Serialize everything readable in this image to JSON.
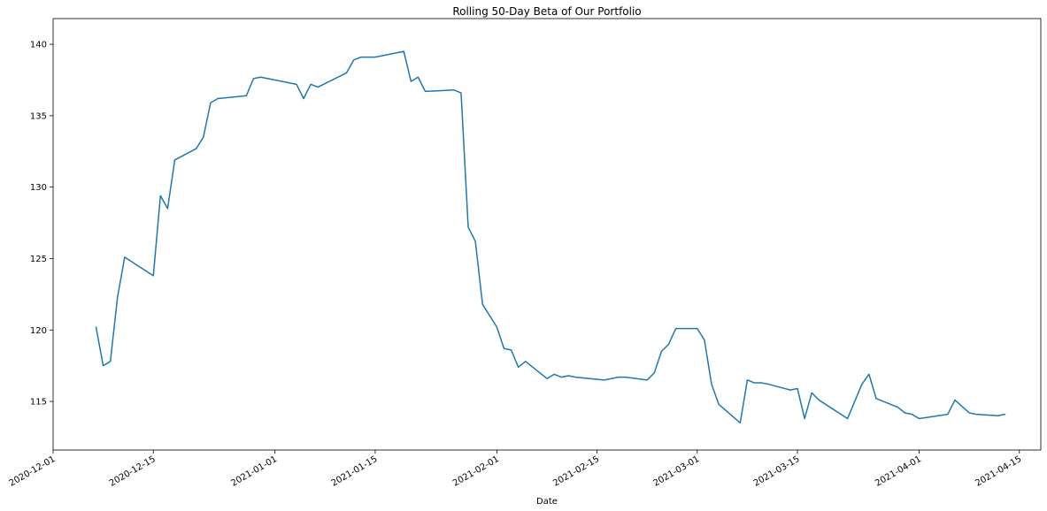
{
  "chart_data": {
    "type": "line",
    "title": "Rolling 50-Day Beta of Our Portfolio",
    "xlabel": "Date",
    "ylabel": "",
    "x_scale": "date",
    "xlim": [
      "2020-12-01",
      "2021-04-18"
    ],
    "ylim": [
      111.6,
      141.8
    ],
    "grid": false,
    "legend": "none",
    "x_ticks": [
      "2020-12-01",
      "2020-12-15",
      "2021-01-01",
      "2021-01-15",
      "2021-02-01",
      "2021-02-15",
      "2021-03-01",
      "2021-03-15",
      "2021-04-01",
      "2021-04-15"
    ],
    "y_ticks": [
      115,
      120,
      125,
      130,
      135,
      140
    ],
    "series": [
      {
        "color": "#1f77b4",
        "x": [
          "2020-12-07",
          "2020-12-08",
          "2020-12-09",
          "2020-12-10",
          "2020-12-11",
          "2020-12-15",
          "2020-12-16",
          "2020-12-17",
          "2020-12-18",
          "2020-12-21",
          "2020-12-22",
          "2020-12-23",
          "2020-12-24",
          "2020-12-28",
          "2020-12-29",
          "2020-12-30",
          "2020-12-31",
          "2021-01-04",
          "2021-01-05",
          "2021-01-06",
          "2021-01-07",
          "2021-01-11",
          "2021-01-12",
          "2021-01-13",
          "2021-01-14",
          "2021-01-15",
          "2021-01-19",
          "2021-01-20",
          "2021-01-21",
          "2021-01-22",
          "2021-01-26",
          "2021-01-27",
          "2021-01-28",
          "2021-01-29",
          "2021-01-30",
          "2021-02-01",
          "2021-02-02",
          "2021-02-03",
          "2021-02-04",
          "2021-02-05",
          "2021-02-08",
          "2021-02-09",
          "2021-02-10",
          "2021-02-11",
          "2021-02-12",
          "2021-02-16",
          "2021-02-17",
          "2021-02-18",
          "2021-02-19",
          "2021-02-22",
          "2021-02-23",
          "2021-02-24",
          "2021-02-25",
          "2021-02-26",
          "2021-03-01",
          "2021-03-02",
          "2021-03-03",
          "2021-03-04",
          "2021-03-07",
          "2021-03-08",
          "2021-03-09",
          "2021-03-10",
          "2021-03-11",
          "2021-03-14",
          "2021-03-15",
          "2021-03-16",
          "2021-03-17",
          "2021-03-18",
          "2021-03-22",
          "2021-03-24",
          "2021-03-25",
          "2021-03-26",
          "2021-03-29",
          "2021-03-30",
          "2021-03-31",
          "2021-04-01",
          "2021-04-05",
          "2021-04-06",
          "2021-04-08",
          "2021-04-09",
          "2021-04-12",
          "2021-04-13"
        ],
        "y": [
          120.2,
          117.5,
          117.8,
          122.3,
          125.1,
          123.8,
          129.4,
          128.5,
          131.9,
          132.7,
          133.5,
          135.9,
          136.2,
          136.4,
          137.6,
          137.7,
          137.6,
          137.2,
          136.2,
          137.2,
          137.0,
          138.0,
          138.9,
          139.1,
          139.1,
          139.1,
          139.5,
          137.4,
          137.7,
          136.7,
          136.8,
          136.6,
          127.2,
          126.2,
          121.8,
          120.2,
          118.7,
          118.6,
          117.4,
          117.8,
          116.6,
          116.9,
          116.7,
          116.8,
          116.7,
          116.5,
          116.6,
          116.7,
          116.7,
          116.5,
          117.0,
          118.5,
          119.0,
          120.1,
          120.1,
          119.3,
          116.2,
          114.8,
          113.5,
          116.5,
          116.3,
          116.3,
          116.2,
          115.8,
          115.9,
          113.8,
          115.6,
          115.1,
          113.8,
          116.2,
          116.9,
          115.2,
          114.6,
          114.2,
          114.1,
          113.8,
          114.1,
          115.1,
          114.2,
          114.1,
          114.0,
          114.1
        ]
      }
    ]
  }
}
